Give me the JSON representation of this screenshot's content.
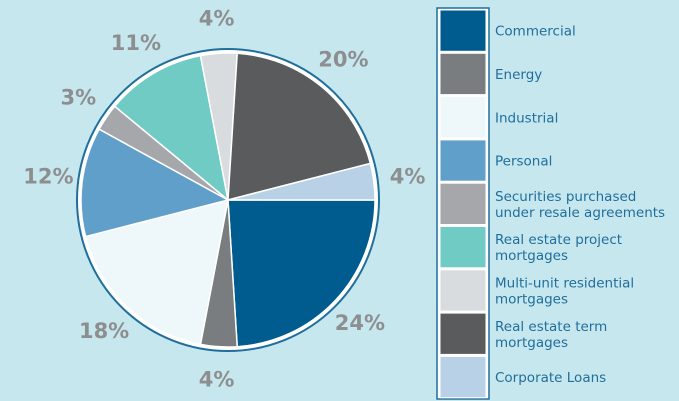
{
  "chart_data": {
    "type": "pie",
    "categories": [
      "Commercial",
      "Energy",
      "Industrial",
      "Personal",
      "Securities purchased under resale agreements",
      "Real estate project mortgages",
      "Multi-unit residential mortgages",
      "Real estate term mortgages",
      "Corporate Loans"
    ],
    "values": [
      24,
      4,
      18,
      12,
      3,
      11,
      4,
      20,
      4
    ],
    "value_labels": [
      "24%",
      "4%",
      "18%",
      "12%",
      "3%",
      "11%",
      "4%",
      "20%",
      "4%"
    ],
    "colors": [
      "#005b8f",
      "#7a7d80",
      "#eef7f9",
      "#5f9fc9",
      "#a5a7aa",
      "#70cbc5",
      "#d9dcde",
      "#5a5b5d",
      "#b9d1e6"
    ]
  }
}
